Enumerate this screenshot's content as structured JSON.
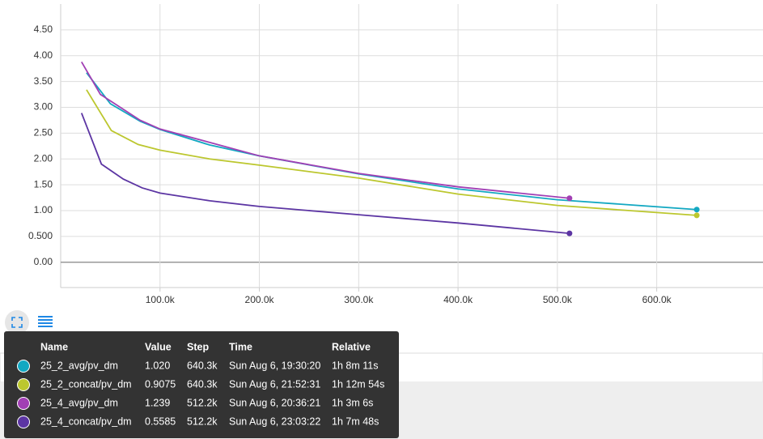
{
  "chart_data": {
    "type": "line",
    "xlim": [
      0,
      707000
    ],
    "ylim": [
      -0.49,
      5.0
    ],
    "xticks": [
      {
        "value": 100000,
        "label": "100.0k"
      },
      {
        "value": 200000,
        "label": "200.0k"
      },
      {
        "value": 300000,
        "label": "300.0k"
      },
      {
        "value": 400000,
        "label": "400.0k"
      },
      {
        "value": 500000,
        "label": "500.0k"
      },
      {
        "value": 600000,
        "label": "600.0k"
      }
    ],
    "yticks": [
      {
        "value": 0,
        "label": "0.00"
      },
      {
        "value": 0.5,
        "label": "0.500"
      },
      {
        "value": 1,
        "label": "1.00"
      },
      {
        "value": 1.5,
        "label": "1.50"
      },
      {
        "value": 2,
        "label": "2.00"
      },
      {
        "value": 2.5,
        "label": "2.50"
      },
      {
        "value": 3,
        "label": "3.00"
      },
      {
        "value": 3.5,
        "label": "3.50"
      },
      {
        "value": 4,
        "label": "4.00"
      },
      {
        "value": 4.5,
        "label": "4.50"
      }
    ],
    "grid": true,
    "series": [
      {
        "name": "25_2_avg/pv_dm",
        "color": "#13a8c2",
        "x": [
          26000,
          50000,
          80000,
          100000,
          150000,
          200000,
          300000,
          400000,
          500000,
          640300
        ],
        "values": [
          3.67,
          3.07,
          2.73,
          2.57,
          2.27,
          2.06,
          1.71,
          1.42,
          1.21,
          1.02
        ]
      },
      {
        "name": "25_2_concat/pv_dm",
        "color": "#bcc72e",
        "x": [
          26000,
          51000,
          78000,
          100000,
          150000,
          200000,
          300000,
          400000,
          500000,
          640300
        ],
        "values": [
          3.34,
          2.55,
          2.28,
          2.17,
          2.0,
          1.88,
          1.63,
          1.32,
          1.1,
          0.9075
        ]
      },
      {
        "name": "25_4_avg/pv_dm",
        "color": "#a13fb4",
        "x": [
          21000,
          40000,
          80000,
          100000,
          200000,
          300000,
          400000,
          512200
        ],
        "values": [
          3.88,
          3.25,
          2.75,
          2.58,
          2.06,
          1.72,
          1.46,
          1.239
        ]
      },
      {
        "name": "25_4_concat/pv_dm",
        "color": "#5c35a3",
        "x": [
          21000,
          41000,
          63000,
          82000,
          100000,
          150000,
          200000,
          300000,
          400000,
          512200
        ],
        "values": [
          2.89,
          1.9,
          1.61,
          1.44,
          1.34,
          1.19,
          1.08,
          0.92,
          0.76,
          0.5585
        ]
      }
    ]
  },
  "tooltip": {
    "columns": [
      "Name",
      "Value",
      "Step",
      "Time",
      "Relative"
    ],
    "rows": [
      [
        "25_2_avg/pv_dm",
        "1.020",
        "640.3k",
        "Sun Aug 6, 19:30:20",
        "1h 8m 11s"
      ],
      [
        "25_2_concat/pv_dm",
        "0.9075",
        "640.3k",
        "Sun Aug 6, 21:52:31",
        "1h 12m 54s"
      ],
      [
        "25_4_avg/pv_dm",
        "1.239",
        "512.2k",
        "Sun Aug 6, 20:36:21",
        "1h 3m 6s"
      ],
      [
        "25_4_concat/pv_dm",
        "0.5585",
        "512.2k",
        "Sun Aug 6, 23:03:22",
        "1h 7m 48s"
      ]
    ]
  }
}
